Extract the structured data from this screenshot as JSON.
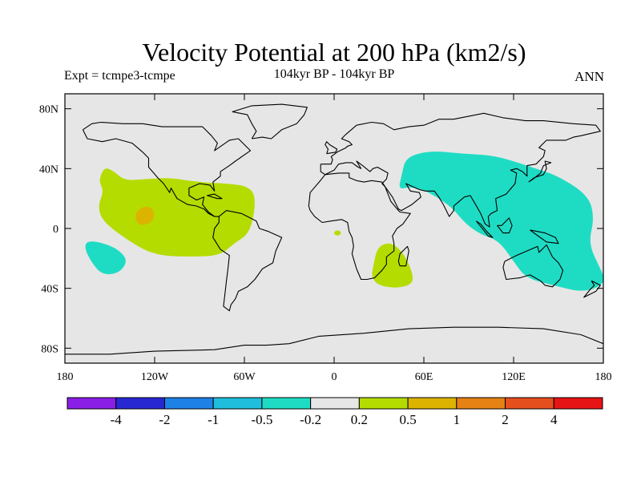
{
  "chart_data": {
    "type": "heatmap",
    "title": "Velocity Potential at 200 hPa (km2/s)",
    "subtitle_left": "Expt = tcmpe3-tcmpe",
    "subtitle_center": "104kyr BP - 104kyr BP",
    "subtitle_right": "ANN",
    "x_axis": {
      "range": [
        -180,
        180
      ],
      "ticks": [
        {
          "value": -180,
          "label": "180"
        },
        {
          "value": -120,
          "label": "120W"
        },
        {
          "value": -60,
          "label": "60W"
        },
        {
          "value": 0,
          "label": "0"
        },
        {
          "value": 60,
          "label": "60E"
        },
        {
          "value": 120,
          "label": "120E"
        },
        {
          "value": 180,
          "label": "180"
        }
      ]
    },
    "y_axis": {
      "range": [
        -90,
        90
      ],
      "ticks": [
        {
          "value": 80,
          "label": "80N"
        },
        {
          "value": 40,
          "label": "40N"
        },
        {
          "value": 0,
          "label": "0"
        },
        {
          "value": -40,
          "label": "40S"
        },
        {
          "value": -80,
          "label": "80S"
        }
      ]
    },
    "colorbar": {
      "colors": [
        "#8a1ee6",
        "#2828d2",
        "#1e82e6",
        "#1ebedc",
        "#1edcc4",
        "#e6e6e6",
        "#b4dc00",
        "#dcb400",
        "#e68214",
        "#e6501e",
        "#e61414"
      ],
      "labels": [
        "-4",
        "-2",
        "-1",
        "-0.5",
        "-0.2",
        "0.2",
        "0.5",
        "1",
        "2",
        "4"
      ]
    },
    "regions": [
      {
        "name": "east-pacific-americas-positive",
        "level": 0.5,
        "color": "#b4dc00",
        "points": [
          [
            -156,
            36
          ],
          [
            -153,
            41
          ],
          [
            -147,
            38
          ],
          [
            -140,
            32
          ],
          [
            -125,
            33
          ],
          [
            -110,
            34
          ],
          [
            -92,
            31
          ],
          [
            -70,
            30
          ],
          [
            -57,
            28
          ],
          [
            -52,
            20
          ],
          [
            -56,
            -3
          ],
          [
            -67,
            -10
          ],
          [
            -76,
            -18
          ],
          [
            -95,
            -19
          ],
          [
            -120,
            -18
          ],
          [
            -138,
            -8
          ],
          [
            -155,
            5
          ],
          [
            -158,
            15
          ],
          [
            -154,
            25
          ],
          [
            -157,
            31
          ]
        ]
      },
      {
        "name": "east-pacific-core",
        "level": 1,
        "color": "#dcb400",
        "points": [
          [
            -134,
            9
          ],
          [
            -128,
            15
          ],
          [
            -121,
            14
          ],
          [
            -120,
            5
          ],
          [
            -130,
            1
          ]
        ]
      },
      {
        "name": "southeast-africa-positive",
        "level": 0.5,
        "color": "#b4dc00",
        "points": [
          [
            26,
            -26
          ],
          [
            29,
            -12
          ],
          [
            38,
            -9
          ],
          [
            46,
            -16
          ],
          [
            52,
            -28
          ],
          [
            53,
            -37
          ],
          [
            42,
            -40
          ],
          [
            29,
            -38
          ],
          [
            25,
            -32
          ]
        ]
      },
      {
        "name": "west-africa-small-positive",
        "level": 0.5,
        "color": "#b4dc00",
        "points": [
          [
            0,
            -2
          ],
          [
            3,
            -1
          ],
          [
            5,
            -3
          ],
          [
            3,
            -5
          ],
          [
            0,
            -4
          ]
        ]
      },
      {
        "name": "west-pacific-asia-negative",
        "level": -0.5,
        "color": "#1edcc4",
        "points": [
          [
            45,
            35
          ],
          [
            48,
            48
          ],
          [
            65,
            52
          ],
          [
            85,
            50
          ],
          [
            105,
            49
          ],
          [
            120,
            45
          ],
          [
            135,
            40
          ],
          [
            150,
            35
          ],
          [
            170,
            22
          ],
          [
            174,
            7
          ],
          [
            170,
            -10
          ],
          [
            178,
            -27
          ],
          [
            182,
            -36
          ],
          [
            168,
            -43
          ],
          [
            146,
            -38
          ],
          [
            128,
            -33
          ],
          [
            120,
            -22
          ],
          [
            110,
            -8
          ],
          [
            98,
            -4
          ],
          [
            88,
            3
          ],
          [
            78,
            15
          ],
          [
            62,
            25
          ],
          [
            51,
            28
          ],
          [
            43,
            26
          ]
        ]
      },
      {
        "name": "south-pacific-negative",
        "level": -0.5,
        "color": "#1edcc4",
        "points": [
          [
            -165,
            -8
          ],
          [
            -153,
            -10
          ],
          [
            -143,
            -15
          ],
          [
            -138,
            -22
          ],
          [
            -144,
            -30
          ],
          [
            -155,
            -31
          ],
          [
            -162,
            -23
          ],
          [
            -167,
            -13
          ]
        ]
      }
    ]
  }
}
